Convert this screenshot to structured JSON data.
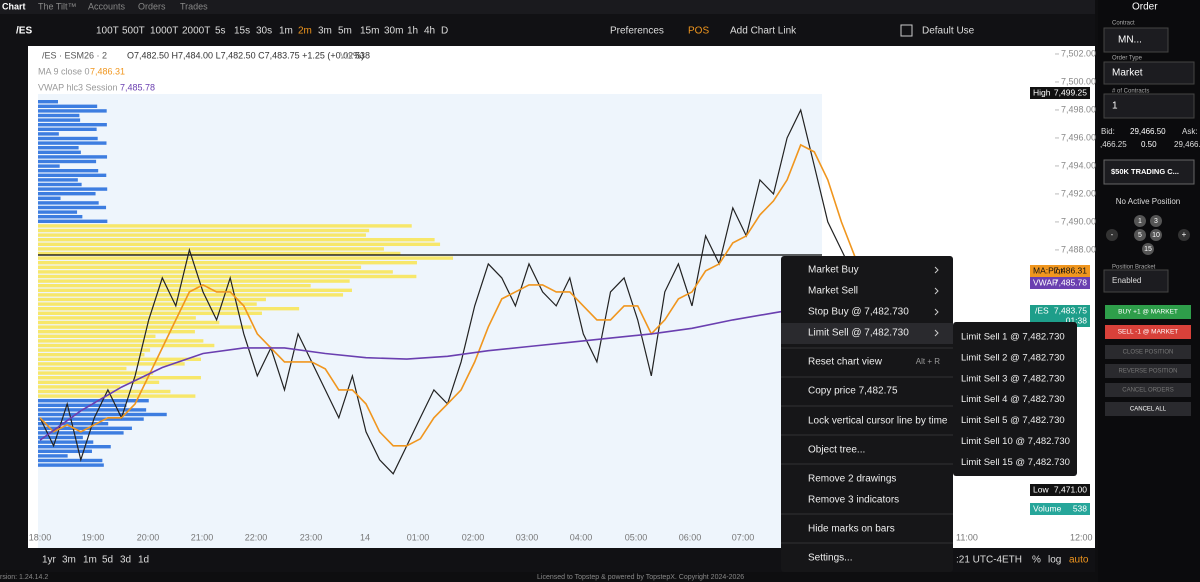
{
  "tabs": [
    "Chart",
    "The Tilt™",
    "Accounts",
    "Orders",
    "Trades"
  ],
  "toolbar": {
    "symbol": "/ES",
    "intervals": [
      "100T",
      "500T",
      "1000T",
      "2000T",
      "5s",
      "15s",
      "30s",
      "1m",
      "2m",
      "3m",
      "5m",
      "15m",
      "30m",
      "1h",
      "4h",
      "D"
    ],
    "active_interval": "2m",
    "preferences": "Preferences",
    "pos": "POS",
    "add_chart_link": "Add Chart Link",
    "layout": "Default Use"
  },
  "legend": {
    "symbol": "/ES · ESM26 · 2",
    "ohlc": "O7,482.50 H7,484.00 L7,482.50 C7,483.75 +1.25 (+0.02%)",
    "vol_label": "Vol",
    "vol": "538",
    "ma_label": "MA 9 close 0",
    "ma_value": "7,486.31",
    "vwap_label": "VWAP hlc3 Session",
    "vwap_value": "7,485.78"
  },
  "chart_data": {
    "type": "line",
    "ylim": [
      7466.7,
      7502.57
    ],
    "yticks": [
      {
        "value": 7502,
        "label": "7,502.00"
      },
      {
        "value": 7500,
        "label": "7,500.00"
      },
      {
        "value": 7498,
        "label": "7,498.00"
      },
      {
        "value": 7496,
        "label": "7,496.00"
      },
      {
        "value": 7494,
        "label": "7,494.00"
      },
      {
        "value": 7492,
        "label": "7,492.00"
      },
      {
        "value": 7490,
        "label": "7,490.00"
      },
      {
        "value": 7488,
        "label": "7,488.00"
      }
    ],
    "x_labels": [
      "18:00",
      "19:00",
      "20:00",
      "21:00",
      "22:00",
      "23:00",
      "14",
      "01:00",
      "02:00",
      "03:00",
      "04:00",
      "05:00",
      "06:00",
      "07:00"
    ],
    "series": [
      {
        "name": "/ES",
        "color": "#222222",
        "values": [
          7476,
          7474,
          7477,
          7473,
          7476,
          7478,
          7476,
          7479,
          7483,
          7486,
          7484,
          7488,
          7485,
          7483,
          7486,
          7482,
          7479,
          7481,
          7478,
          7482,
          7480,
          7478,
          7476,
          7479,
          7475,
          7473,
          7472,
          7474,
          7476,
          7478,
          7477,
          7480,
          7484,
          7487,
          7486,
          7484,
          7487,
          7485,
          7484,
          7486,
          7482,
          7480,
          7485,
          7486,
          7483,
          7479,
          7485,
          7487,
          7484,
          7489,
          7487,
          7491,
          7489,
          7493,
          7492,
          7496,
          7498,
          7494,
          7490,
          7488,
          7486
        ]
      },
      {
        "name": "MA 9 close 0",
        "color": "#f0961e",
        "values": [
          7476,
          7475,
          7475.5,
          7475,
          7475.5,
          7476,
          7476,
          7477,
          7479,
          7481,
          7483,
          7485,
          7485.5,
          7485,
          7485,
          7484,
          7482,
          7481,
          7480,
          7480,
          7480,
          7479.5,
          7478,
          7478,
          7477,
          7475,
          7474,
          7474,
          7474.5,
          7476,
          7477,
          7478,
          7480,
          7482.5,
          7484.5,
          7485,
          7485.5,
          7485.5,
          7485,
          7485,
          7484,
          7483,
          7483,
          7484,
          7484,
          7482,
          7483,
          7484.5,
          7485,
          7486.5,
          7487,
          7488.5,
          7489,
          7490.5,
          7491.5,
          7493,
          7495.5,
          7495,
          7493,
          7490,
          7487.5
        ]
      },
      {
        "name": "VWAP hlc3 Session",
        "color": "#6a3fb0",
        "values": [
          7474.4,
          7476.5,
          7478.2,
          7479.6,
          7480.6,
          7481,
          7481,
          7480.6,
          7480.3,
          7480.2,
          7480.4,
          7480.8,
          7481.1,
          7481.4,
          7481.7,
          7482,
          7482.4,
          7483,
          7483.5,
          7484,
          7484.4
        ]
      }
    ]
  },
  "axis_tags": {
    "high_label": "High",
    "high": "7,499.25",
    "ma_label": "MA:Plot",
    "ma": "7,486.31",
    "vwap_label": "VWAP",
    "vwap": "7,485.78",
    "last_label": "/ES",
    "last": "7,483.75",
    "countdown": "01:38",
    "low_label": "Low",
    "low": "7,471.00",
    "volume_label": "Volume",
    "volume": "538"
  },
  "context_menu": {
    "items": [
      "Market Buy",
      "Market Sell",
      "Stop Buy @ 7,482.730",
      "Limit Sell @ 7,482.730",
      "Reset chart view",
      "Copy price 7,482.75",
      "Lock vertical cursor line by time",
      "Object tree...",
      "Remove 2 drawings",
      "Remove 3 indicators",
      "Hide marks on bars",
      "Settings..."
    ],
    "shortcut": "Alt + R"
  },
  "submenu": [
    "Limit Sell 1 @ 7,482.730",
    "Limit Sell 2 @ 7,482.730",
    "Limit Sell 3 @ 7,482.730",
    "Limit Sell 4 @ 7,482.730",
    "Limit Sell 5 @ 7,482.730",
    "Limit Sell 10 @ 7,482.730",
    "Limit Sell 15 @ 7,482.730"
  ],
  "bottom_bar": {
    "ranges": [
      "1yr",
      "3m",
      "1m",
      "5d",
      "3d",
      "1d"
    ],
    "clock": ":21 UTC-4",
    "session": "ETH",
    "percent": "%",
    "log": "log",
    "auto": "auto",
    "partial_time": "11:00",
    "right_time": "12:00"
  },
  "footer": {
    "version": "rsion: 1.24.14.2",
    "license": "Licensed to Topstep & powered by TopstepX. Copyright 2024-2026"
  },
  "order_panel": {
    "title": "Order",
    "contract_label": "Contract",
    "contract": "MN...",
    "order_type_label": "Order Type",
    "order_type": "Market",
    "contracts_label": "# of Contracts",
    "contracts": "1",
    "bid_label": "Bid:",
    "bid": "29,466.50",
    "ask_label": "Ask:",
    "bid_size": ",466.25",
    "spread": "0.50",
    "ask": "29,466.",
    "account": "$50K TRADING C...",
    "position": "No Active Position",
    "sizes": [
      "1",
      "3",
      "5",
      "10",
      "15"
    ],
    "minus": "-",
    "plus": "+",
    "bracket_label": "Position Bracket",
    "bracket": "Enabled",
    "buy": "BUY +1 @ MARKET",
    "sell": "SELL -1 @ MARKET",
    "buttons": [
      "CLOSE POSITION",
      "REVERSE POSITION",
      "CANCEL ORDERS",
      "CANCEL ALL"
    ]
  }
}
